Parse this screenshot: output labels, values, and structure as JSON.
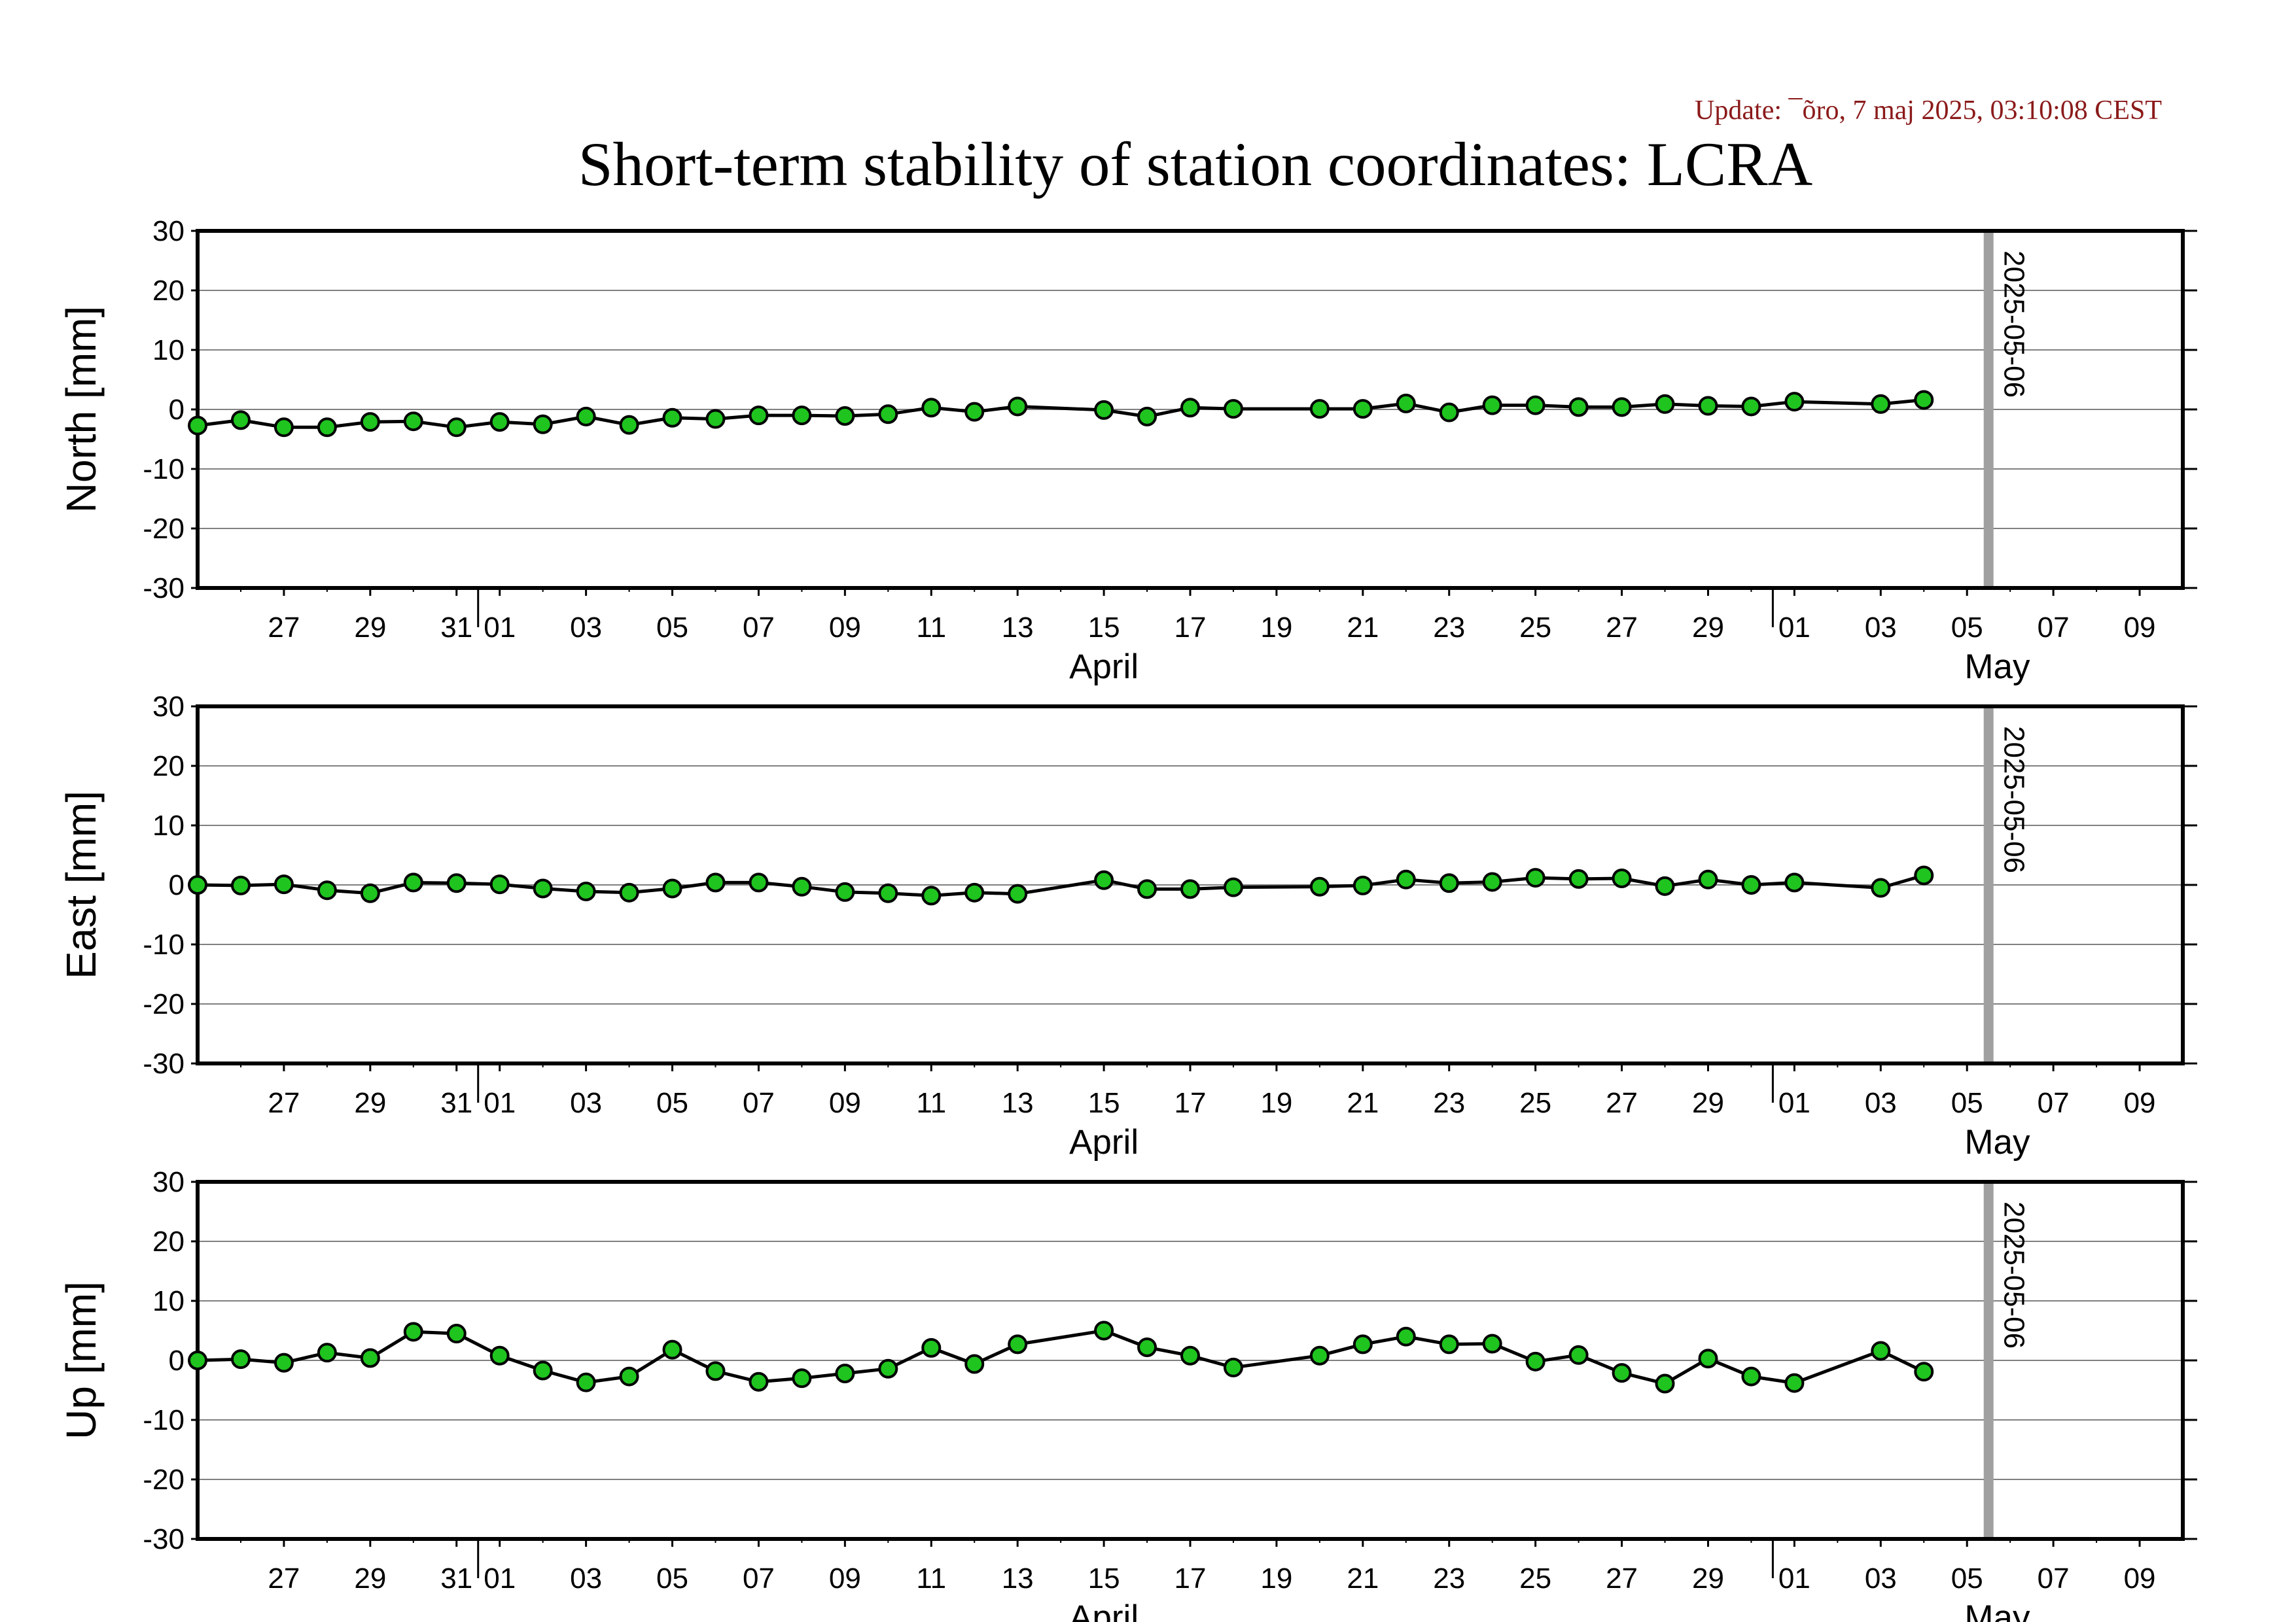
{
  "update_text": "Update: ¯õro, 7 maj 2025, 03:10:08 CEST",
  "title": "Short-term stability of station coordinates: LCRA",
  "colors": {
    "update": "#8b1a1a",
    "marker_fill": "#1fc41f",
    "marker_edge": "#000000",
    "line": "#000000",
    "grid": "#808080",
    "date_marker": "#a0a0a0"
  },
  "x_axis": {
    "day_ticks": [
      "27",
      "29",
      "31",
      "01",
      "03",
      "05",
      "07",
      "09",
      "11",
      "13",
      "15",
      "17",
      "19",
      "21",
      "23",
      "25",
      "27",
      "29",
      "01",
      "03",
      "05",
      "07",
      "09"
    ],
    "month_labels": [
      "April",
      "May"
    ],
    "range": [
      "2025-03-25",
      "2025-05-10"
    ]
  },
  "marker_date_label": "2025-05-06",
  "chart_data": [
    {
      "type": "line",
      "ylabel": "North [mm]",
      "ylim": [
        -30,
        30
      ],
      "yticks": [
        "30",
        "20",
        "10",
        "0",
        "-10",
        "-20",
        "-30"
      ],
      "grid": true,
      "x": [
        "2025-03-25",
        "2025-03-26",
        "2025-03-27",
        "2025-03-28",
        "2025-03-29",
        "2025-03-30",
        "2025-03-31",
        "2025-04-01",
        "2025-04-02",
        "2025-04-03",
        "2025-04-04",
        "2025-04-05",
        "2025-04-06",
        "2025-04-07",
        "2025-04-08",
        "2025-04-09",
        "2025-04-10",
        "2025-04-11",
        "2025-04-12",
        "2025-04-13",
        "2025-04-15",
        "2025-04-16",
        "2025-04-17",
        "2025-04-18",
        "2025-04-20",
        "2025-04-21",
        "2025-04-22",
        "2025-04-23",
        "2025-04-24",
        "2025-04-25",
        "2025-04-26",
        "2025-04-27",
        "2025-04-28",
        "2025-04-29",
        "2025-04-30",
        "2025-05-01",
        "2025-05-03",
        "2025-05-04"
      ],
      "values": [
        -2.7,
        -1.8,
        -3.0,
        -3.0,
        -2.1,
        -2.0,
        -3.0,
        -2.1,
        -2.5,
        -1.2,
        -2.6,
        -1.4,
        -1.6,
        -1.0,
        -1.0,
        -1.1,
        -0.8,
        0.3,
        -0.4,
        0.5,
        -0.1,
        -1.2,
        0.3,
        0.1,
        0.1,
        0.1,
        1.0,
        -0.5,
        0.7,
        0.7,
        0.4,
        0.4,
        0.9,
        0.6,
        0.5,
        1.3,
        0.9,
        1.6
      ]
    },
    {
      "type": "line",
      "ylabel": "East [mm]",
      "ylim": [
        -30,
        30
      ],
      "yticks": [
        "30",
        "20",
        "10",
        "0",
        "-10",
        "-20",
        "-30"
      ],
      "grid": true,
      "x": [
        "2025-03-25",
        "2025-03-26",
        "2025-03-27",
        "2025-03-28",
        "2025-03-29",
        "2025-03-30",
        "2025-03-31",
        "2025-04-01",
        "2025-04-02",
        "2025-04-03",
        "2025-04-04",
        "2025-04-05",
        "2025-04-06",
        "2025-04-07",
        "2025-04-08",
        "2025-04-09",
        "2025-04-10",
        "2025-04-11",
        "2025-04-12",
        "2025-04-13",
        "2025-04-15",
        "2025-04-16",
        "2025-04-17",
        "2025-04-18",
        "2025-04-20",
        "2025-04-21",
        "2025-04-22",
        "2025-04-23",
        "2025-04-24",
        "2025-04-25",
        "2025-04-26",
        "2025-04-27",
        "2025-04-28",
        "2025-04-29",
        "2025-04-30",
        "2025-05-01",
        "2025-05-03",
        "2025-05-04"
      ],
      "values": [
        0.0,
        -0.1,
        0.1,
        -0.9,
        -1.4,
        0.4,
        0.3,
        0.1,
        -0.6,
        -1.1,
        -1.3,
        -0.6,
        0.4,
        0.4,
        -0.3,
        -1.2,
        -1.4,
        -1.8,
        -1.3,
        -1.5,
        0.8,
        -0.7,
        -0.7,
        -0.4,
        -0.3,
        -0.1,
        0.9,
        0.3,
        0.5,
        1.2,
        1.0,
        1.1,
        -0.2,
        0.9,
        0.0,
        0.4,
        -0.5,
        1.6
      ]
    },
    {
      "type": "line",
      "ylabel": "Up [mm]",
      "ylim": [
        -30,
        30
      ],
      "yticks": [
        "30",
        "20",
        "10",
        "0",
        "-10",
        "-20",
        "-30"
      ],
      "grid": true,
      "x": [
        "2025-03-25",
        "2025-03-26",
        "2025-03-27",
        "2025-03-28",
        "2025-03-29",
        "2025-03-30",
        "2025-03-31",
        "2025-04-01",
        "2025-04-02",
        "2025-04-03",
        "2025-04-04",
        "2025-04-05",
        "2025-04-06",
        "2025-04-07",
        "2025-04-08",
        "2025-04-09",
        "2025-04-10",
        "2025-04-11",
        "2025-04-12",
        "2025-04-13",
        "2025-04-15",
        "2025-04-16",
        "2025-04-17",
        "2025-04-18",
        "2025-04-20",
        "2025-04-21",
        "2025-04-22",
        "2025-04-23",
        "2025-04-24",
        "2025-04-25",
        "2025-04-26",
        "2025-04-27",
        "2025-04-28",
        "2025-04-29",
        "2025-04-30",
        "2025-05-01",
        "2025-05-03",
        "2025-05-04"
      ],
      "values": [
        0.0,
        0.2,
        -0.4,
        1.3,
        0.4,
        4.8,
        4.5,
        0.8,
        -1.7,
        -3.7,
        -2.7,
        1.8,
        -1.8,
        -3.6,
        -3.0,
        -2.2,
        -1.4,
        2.1,
        -0.6,
        2.7,
        5.0,
        2.2,
        0.8,
        -1.2,
        0.8,
        2.7,
        4.0,
        2.7,
        2.8,
        -0.2,
        0.9,
        -2.1,
        -3.9,
        0.3,
        -2.7,
        -3.8,
        1.6,
        -1.9
      ]
    }
  ]
}
